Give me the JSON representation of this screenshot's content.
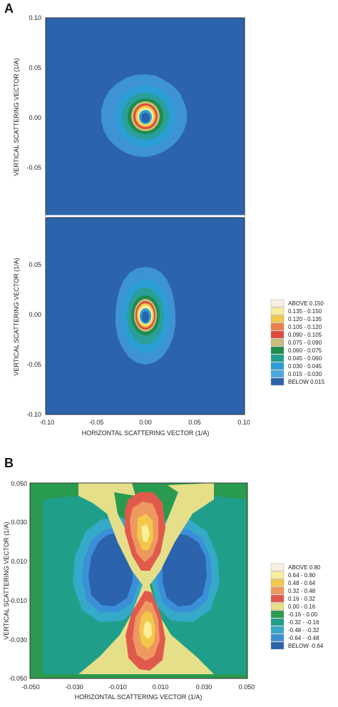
{
  "panels": [
    {
      "label": "A",
      "charts": [
        {
          "id": "A-top",
          "type": "heatmap",
          "x_ticks": [],
          "y_ticks": [
            "0.10",
            "0.05",
            "0.00",
            "-0.05"
          ],
          "xlim": [
            -0.1,
            0.1
          ],
          "ylim": [
            -0.1,
            0.1
          ],
          "ylabel": "VERTICAL SCATTERING VECTOR (1/A)",
          "xlabel": "",
          "background": "#2b63ad"
        },
        {
          "id": "A-bottom",
          "type": "heatmap",
          "x_ticks": [
            "-0.10",
            "-0.05",
            "0.00",
            "0.05",
            "0.10"
          ],
          "y_ticks": [
            "0.05",
            "0.00",
            "-0.05",
            "-0.10"
          ],
          "xlim": [
            -0.1,
            0.1
          ],
          "ylim": [
            -0.1,
            0.1
          ],
          "ylabel": "VERTICAL SCATTERING VECTOR (1/A)",
          "xlabel": "HORIZONTAL SCATTERING VECTOR (1/A)",
          "background": "#2b63ad"
        }
      ],
      "legend": [
        {
          "label": "ABOVE  0.150",
          "color": "#f6f1e2"
        },
        {
          "label": "0.135 - 0.150",
          "color": "#f9ee9a"
        },
        {
          "label": "0.120 - 0.135",
          "color": "#f3c84a"
        },
        {
          "label": "0.105 - 0.120",
          "color": "#ee7d48"
        },
        {
          "label": "0.090 - 0.105",
          "color": "#e04a3c"
        },
        {
          "label": "0.075 - 0.090",
          "color": "#c8bd7a"
        },
        {
          "label": "0.060 - 0.075",
          "color": "#1f8c4a"
        },
        {
          "label": "0.045 - 0.060",
          "color": "#1f9f8c"
        },
        {
          "label": "0.030 - 0.045",
          "color": "#2b9ed6"
        },
        {
          "label": "0.015 - 0.030",
          "color": "#4aa8e0"
        },
        {
          "label": "BELOW  0.015",
          "color": "#2b63ad"
        }
      ]
    },
    {
      "label": "B",
      "charts": [
        {
          "id": "B",
          "type": "heatmap",
          "x_ticks": [
            "-0.050",
            "-0.030",
            "-0.010",
            "0.010",
            "0.030",
            "0.050"
          ],
          "y_ticks": [
            "0.050",
            "0.030",
            "0.010",
            "-0.010",
            "-0.030",
            "-0.050"
          ],
          "xlim": [
            -0.05,
            0.05
          ],
          "ylim": [
            -0.05,
            0.05
          ],
          "ylabel": "VERTICAL SCATTERING VECTOR (1/A)",
          "xlabel": "HORIZONTAL SCATTERING VECTOR (1/A)",
          "background": "#2a9a4e"
        }
      ],
      "legend": [
        {
          "label": "ABOVE  0.80",
          "color": "#f6f1e2"
        },
        {
          "label": "0.64 - 0.80",
          "color": "#f9ee9a"
        },
        {
          "label": "0.48 - 0.64",
          "color": "#f3c84a"
        },
        {
          "label": "0.32 - 0.48",
          "color": "#ee9960"
        },
        {
          "label": "0.16 - 0.32",
          "color": "#e05a4c"
        },
        {
          "label": "0.00 - 0.16",
          "color": "#e6df8a"
        },
        {
          "label": "-0.16 - 0.00",
          "color": "#2a9a4e"
        },
        {
          "label": "-0.32 - -0.16",
          "color": "#1f9f8c"
        },
        {
          "label": "-0.48 - -0.32",
          "color": "#36a8c8"
        },
        {
          "label": "-0.64 - -0.48",
          "color": "#3a8fd8"
        },
        {
          "label": "BELOW  -0.64",
          "color": "#2b63ad"
        }
      ]
    }
  ],
  "chart_data": [
    {
      "type": "heatmap",
      "title": "",
      "xlabel": "",
      "ylabel": "VERTICAL SCATTERING VECTOR (1/A)",
      "xlim": [
        -0.1,
        0.1
      ],
      "ylim": [
        -0.1,
        0.1
      ],
      "legend": [
        "ABOVE 0.150",
        "0.135 - 0.150",
        "0.120 - 0.135",
        "0.105 - 0.120",
        "0.090 - 0.105",
        "0.075 - 0.090",
        "0.060 - 0.075",
        "0.045 - 0.060",
        "0.030 - 0.045",
        "0.015 - 0.030",
        "BELOW 0.015"
      ],
      "pattern": "isotropic ring centered at (0,0), radius ~0.03"
    },
    {
      "type": "heatmap",
      "title": "",
      "xlabel": "HORIZONTAL SCATTERING VECTOR (1/A)",
      "ylabel": "VERTICAL SCATTERING VECTOR (1/A)",
      "xlim": [
        -0.1,
        0.1
      ],
      "ylim": [
        -0.1,
        0.1
      ],
      "pattern": "vertically elongated ring centered at (0,0)"
    },
    {
      "type": "heatmap",
      "title": "",
      "xlabel": "HORIZONTAL SCATTERING VECTOR (1/A)",
      "ylabel": "VERTICAL SCATTERING VECTOR (1/A)",
      "xlim": [
        -0.05,
        0.05
      ],
      "ylim": [
        -0.05,
        0.05
      ],
      "legend": [
        "ABOVE 0.80",
        "0.64 - 0.80",
        "0.48 - 0.64",
        "0.32 - 0.48",
        "0.16 - 0.32",
        "0.00 - 0.16",
        "-0.16 - 0.00",
        "-0.32 - -0.16",
        "-0.48 - -0.32",
        "-0.64 - -0.48",
        "BELOW -0.64"
      ],
      "pattern": "positive lobes above/below center, negative lobes left/right"
    }
  ]
}
